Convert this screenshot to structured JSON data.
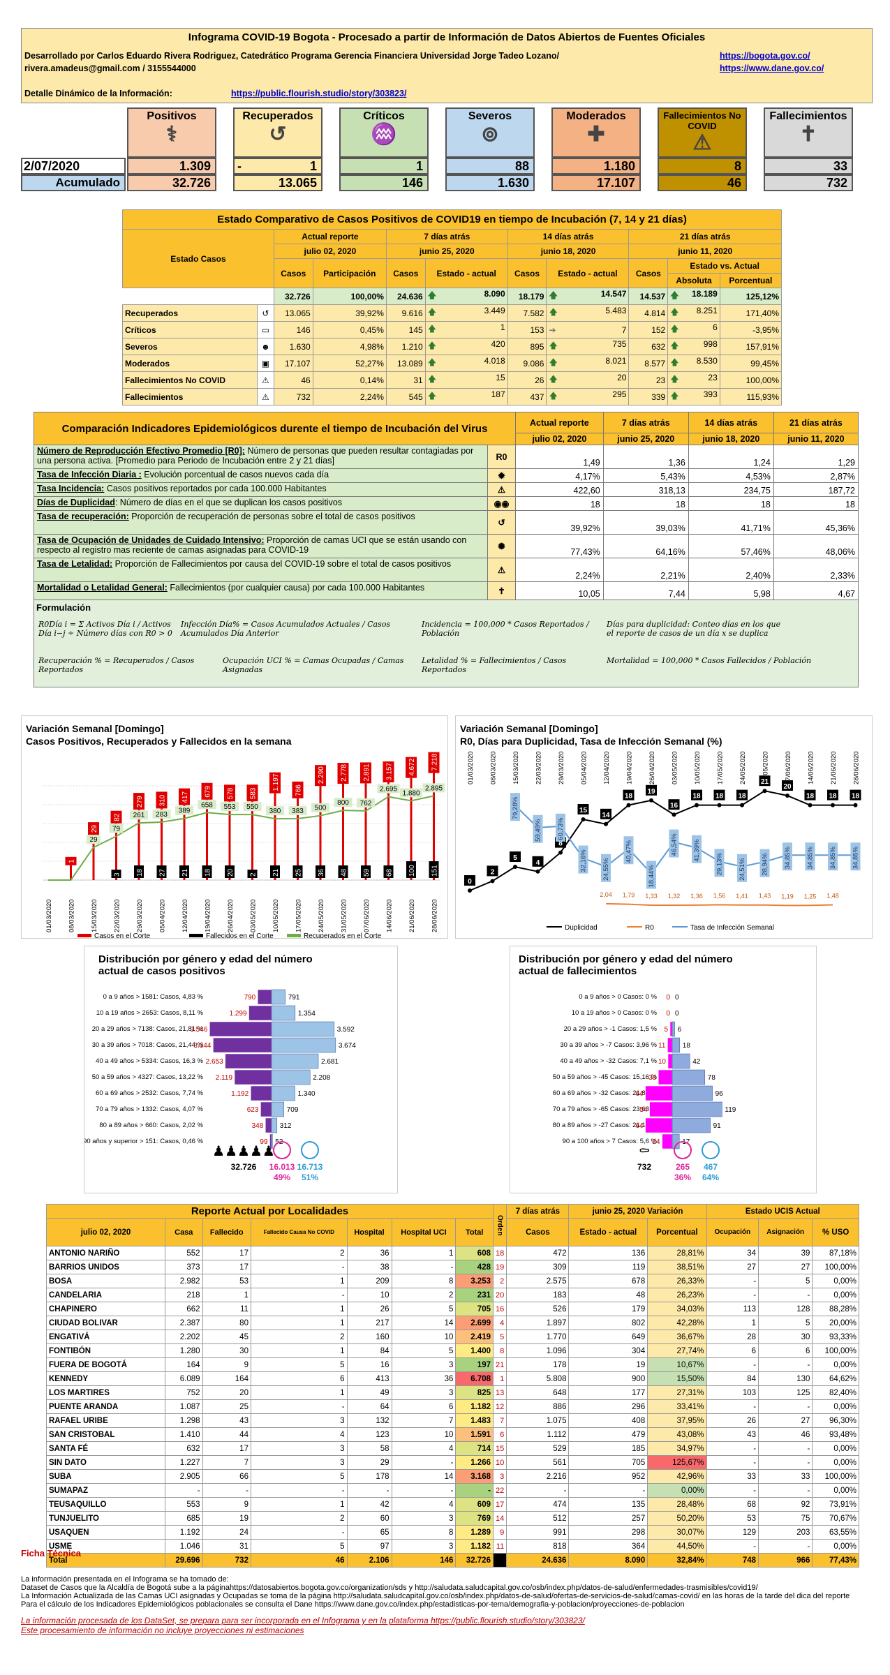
{
  "header": {
    "title": "Infograma COVID-19 Bogota - Procesado a partir de Información de Datos Abiertos de Fuentes Oficiales",
    "author": "Desarrollado por Carlos Eduardo Rivera Rodriguez, Catedrático Programa Gerencia Financiera Universidad Jorge Tadeo Lozano/",
    "contact": "rivera.amadeus@gmail.com / 3155544000",
    "link1": "https://bogota.gov.co/",
    "link2": "https://www.dane.gov.co/",
    "detail_label": "Detalle Dinámico de la Información:",
    "detail_link": "https://public.flourish.studio/story/303823/"
  },
  "kpi": {
    "date": "2/07/2020",
    "acum_label": "Acumulado",
    "cards": [
      {
        "name": "Positivos",
        "day": "1.309",
        "acum": "32.726",
        "color": "#f8cbad"
      },
      {
        "name": "Recuperados",
        "day": "1",
        "prefix": "-",
        "acum": "13.065",
        "color": "#fde9a9"
      },
      {
        "name": "Críticos",
        "day": "1",
        "acum": "146",
        "color": "#c6e0b4"
      },
      {
        "name": "Severos",
        "day": "88",
        "acum": "1.630",
        "color": "#bdd7ee"
      },
      {
        "name": "Moderados",
        "day": "1.180",
        "acum": "17.107",
        "color": "#f4b183"
      },
      {
        "name": "Fallecimientos No COVID",
        "day": "8",
        "acum": "46",
        "color": "#bf9000"
      },
      {
        "name": "Fallecimientos",
        "day": "33",
        "acum": "732",
        "color": "#d9d9d9"
      }
    ]
  },
  "t1": {
    "title": "Estado Comparativo de Casos Positivos de COVID19 en tiempo de Incubación (7, 14 y 21 días)",
    "estado": "Estado Casos",
    "h_actual": "Actual reporte",
    "d_actual": "julio 02, 2020",
    "h7": "7 días atrás",
    "d7": "junio 25, 2020",
    "h14": "14 días atrás",
    "d14": "junio 18, 2020",
    "h21": "21 días atrás",
    "d21": "junio 11, 2020",
    "casos": "Casos",
    "part": "Participación",
    "ea": "Estado - actual",
    "eva": "Estado vs. Actual",
    "abs": "Absoluta",
    "porc": "Porcentual",
    "tot": [
      "32.726",
      "100,00%",
      "24.636",
      "8.090",
      "18.179",
      "14.547",
      "14.537",
      "18.189",
      "125,12%"
    ],
    "rows": [
      [
        "Recuperados",
        "13.065",
        "39,92%",
        "9.616",
        "3.449",
        "7.582",
        "5.483",
        "4.814",
        "8.251",
        "171,40%"
      ],
      [
        "Críticos",
        "146",
        "0,45%",
        "145",
        "1",
        "153",
        "7",
        "152",
        "6",
        "-3,95%"
      ],
      [
        "Severos",
        "1.630",
        "4,98%",
        "1.210",
        "420",
        "895",
        "735",
        "632",
        "998",
        "157,91%"
      ],
      [
        "Moderados",
        "17.107",
        "52,27%",
        "13.089",
        "4.018",
        "9.086",
        "8.021",
        "8.577",
        "8.530",
        "99,45%"
      ],
      [
        "Fallecimientos No COVID",
        "46",
        "0,14%",
        "31",
        "15",
        "26",
        "20",
        "23",
        "23",
        "100,00%"
      ],
      [
        "Fallecimientos",
        "732",
        "2,24%",
        "545",
        "187",
        "437",
        "295",
        "339",
        "393",
        "115,93%"
      ]
    ]
  },
  "t2": {
    "title": "Comparación Indicadores Epidemiológicos durente el tiempo de Incubación del Virus",
    "cols": [
      "Actual reporte",
      "7 días atrás",
      "14 días atrás",
      "21 días atrás"
    ],
    "dates": [
      "julio 02, 2020",
      "junio 25, 2020",
      "junio 18, 2020",
      "junio 11, 2020"
    ],
    "rows": [
      {
        "k": "Número de Reproducción Efectivo Promedio [R0]:",
        "d": " Número de personas que pueden resultar contagiadas por una persona activa. [Promedio para Periodo de Incubación entre 2  y 21 días]",
        "icon": "R0",
        "v": [
          "1,49",
          "1,36",
          "1,24",
          "1,29"
        ]
      },
      {
        "k": "Tasa de Infección Diaria :",
        "d": " Evolución porcentual de casos nuevos cada día",
        "icon": "✹",
        "v": [
          "4,17%",
          "5,43%",
          "4,53%",
          "2,87%"
        ]
      },
      {
        "k": "Tasa Incidencia:",
        "d": " Casos positivos reportados  por cada 100.000 Habitantes",
        "icon": "⚠",
        "v": [
          "422,60",
          "318,13",
          "234,75",
          "187,72"
        ]
      },
      {
        "k": "Días de Duplicidad",
        "d": ": Número de días en el que se duplican los casos positivos",
        "icon": "◉◉",
        "v": [
          "18",
          "18",
          "18",
          "18"
        ]
      },
      {
        "k": "Tasa de recuperación:",
        "d": " Proporción de recuperación de personas sobre el total de casos positivos",
        "icon": "↺",
        "v": [
          "39,92%",
          "39,03%",
          "41,71%",
          "45,36%"
        ]
      },
      {
        "k": "Tasa de Ocupación de Unidades de Cuidado Intensivo:",
        "d": " Proporción de camas UCI que se están usando con respecto al registro mas reciente de camas asignadas para COVID-19",
        "icon": "✺",
        "v": [
          "77,43%",
          "64,16%",
          "57,46%",
          "48,06%"
        ]
      },
      {
        "k": "Tasa de Letalidad:",
        "d": " Proporción de Fallecimientos por causa del COVID-19 sobre el total de casos positivos",
        "icon": "⚠",
        "v": [
          "2,24%",
          "2,21%",
          "2,40%",
          "2,33%"
        ]
      },
      {
        "k": "Mortalidad o Letalidad General:",
        "d": " Fallecimientos (por cualquier causa) por cada 100.000 Habitantes",
        "icon": "✝",
        "v": [
          "10,05",
          "7,44",
          "5,98",
          "4,67"
        ]
      }
    ],
    "form_title": "Formulación",
    "f1": "R0Día i = Σ Activos Día i / Activos Día i−j ÷ Número días con R0 > 0",
    "f2": "Infección Día% = Casos Acumulados Actuales / Casos Acumulados Día Anterior",
    "f3": "Incidencia = 100,000 * Casos Reportados / Población",
    "f4": "Días para duplicidad: Conteo días en los que el reporte de casos de un día x se duplica",
    "f5": "Recuperación % = Recuperados / Casos Reportados",
    "f6": "Ocupación UCI % = Camas Ocupadas / Camas Asignadas",
    "f7": "Letalidad % = Fallecimientos / Casos Reportados",
    "f8": "Mortalidad = 100,000 * Casos Fallecidos / Población"
  },
  "chart_data": [
    {
      "type": "bar",
      "title": "Variación Semanal [Domingo]",
      "subtitle": "Casos Positivos, Recuperados y Fallecidos en la semana",
      "categories": [
        "01/03/2020",
        "08/03/2020",
        "15/03/2020",
        "22/03/2020",
        "29/03/2020",
        "05/04/2020",
        "12/04/2020",
        "19/04/2020",
        "26/04/2020",
        "03/05/2020",
        "10/05/2020",
        "17/05/2020",
        "24/05/2020",
        "31/05/2020",
        "07/06/2020",
        "14/06/2020",
        "21/06/2020",
        "28/06/2020"
      ],
      "series": [
        {
          "name": "Casos en el  Corte",
          "values": [
            0,
            1,
            29,
            82,
            279,
            310,
            417,
            679,
            578,
            583,
            1197,
            766,
            2290,
            2778,
            2891,
            3157,
            4672,
            7218
          ]
        },
        {
          "name": "Fallecidos en el Corte",
          "values": [
            0,
            0,
            0,
            3,
            18,
            27,
            21,
            18,
            20,
            2,
            21,
            25,
            36,
            48,
            59,
            68,
            100,
            151
          ]
        },
        {
          "name": "Recuperados en el Corte",
          "values": [
            0,
            0,
            29,
            79,
            261,
            283,
            389,
            658,
            553,
            550,
            380,
            383,
            500,
            800,
            762,
            2695,
            1880,
            2895
          ]
        }
      ]
    },
    {
      "type": "line",
      "title": "Variación Semanal [Domingo]",
      "subtitle": "R0, Días para Duplicidad, Tasa de Infección Semanal (%)",
      "categories": [
        "01/03/2020",
        "08/03/2020",
        "15/03/2020",
        "22/03/2020",
        "29/03/2020",
        "05/04/2020",
        "12/04/2020",
        "19/04/2020",
        "26/04/2020",
        "03/05/2020",
        "10/05/2020",
        "17/05/2020",
        "24/05/2020",
        "31/05/2020",
        "07/06/2020",
        "14/06/2020",
        "21/06/2020",
        "28/06/2020"
      ],
      "series": [
        {
          "name": "Duplicidad",
          "values": [
            0,
            2,
            5,
            4,
            8,
            15,
            14,
            18,
            19,
            16,
            18,
            18,
            18,
            21,
            20,
            18,
            18,
            18
          ]
        },
        {
          "name": "R0",
          "values": [
            null,
            null,
            null,
            null,
            null,
            null,
            2.04,
            1.79,
            1.33,
            1.32,
            1.36,
            1.56,
            1.41,
            1.43,
            1.19,
            1.25,
            1.48,
            null
          ]
        },
        {
          "name": "Tasa de Infección Semanal",
          "values": [
            null,
            null,
            79.28,
            59.49,
            60.73,
            32.16,
            24.55,
            40.47,
            18.44,
            46.54,
            41.39,
            29.13,
            24.51,
            28.94,
            34.85,
            34.85,
            34.85,
            34.85
          ]
        }
      ]
    },
    {
      "type": "bar",
      "title": "Distribución por género y edad del número actual de casos positivos",
      "categories": [
        "0 a 9 años > 1581: Casos, 4,83 %",
        "10 a 19 años > 2653: Casos, 8,11 %",
        "20 a 29 años > 7138: Casos, 21,81 %",
        "30 a 39 años > 7018: Casos, 21,44 %",
        "40 a 49 años > 5334: Casos, 16,3 %",
        "50 a 59 años > 4327: Casos, 13,22 %",
        "60 a 69 años > 2532: Casos, 7,74 %",
        "70 a 79 años > 1332: Casos, 4,07 %",
        "80 a 89 años > 660: Casos, 2,02 %",
        "90 años y superior > 151: Casos, 0,46 %"
      ],
      "series": [
        {
          "name": "Mujeres",
          "values": [
            790,
            1299,
            3546,
            3344,
            2653,
            2119,
            1192,
            623,
            348,
            99
          ]
        },
        {
          "name": "Hombres",
          "values": [
            791,
            1354,
            3592,
            3674,
            2681,
            2208,
            1340,
            709,
            312,
            52
          ]
        }
      ],
      "total": "32.726",
      "women": "16.013",
      "women_pct": "49%",
      "men": "16.713",
      "men_pct": "51%"
    },
    {
      "type": "bar",
      "title": "Distribución por género y edad del número actual de fallecimientos",
      "categories": [
        "0 a 9 años > 0 Casos: 0 %",
        "10 a 19 años > 0 Casos: 0 %",
        "20 a 29 años > -1 Casos: 1,5 %",
        "30 a 39 años > -7 Casos: 3,96 %",
        "40 a 49 años > -32 Casos: 7,1 %",
        "50 a 59 años > -45 Casos: 15,16 %",
        "60 a 69 años > -32 Casos: 21,86 %",
        "70 a 79 años > -65 Casos: 23,63 %",
        "80 a 89 años > -27 Casos: 21,17 %",
        "90 a 100 años > 7 Casos: 5,6 %"
      ],
      "series": [
        {
          "name": "Mujeres",
          "values": [
            0,
            0,
            5,
            11,
            10,
            33,
            64,
            54,
            64,
            24
          ]
        },
        {
          "name": "Hombres",
          "values": [
            0,
            0,
            6,
            18,
            42,
            78,
            96,
            119,
            91,
            17
          ]
        }
      ],
      "total": "732",
      "women": "265",
      "women_pct": "36%",
      "men": "467",
      "men_pct": "64%"
    }
  ],
  "t3": {
    "title": "Reporte Actual por Localidades",
    "date": "julio 02, 2020",
    "orden": "Orden",
    "h7": "7 días atrás",
    "hvar": "junio 25, 2020 Variación",
    "hucis": "Estado UCIS Actual",
    "cols": [
      "Casa",
      "Fallecido",
      "Fallecido Causa No COVID",
      "Hospital",
      "Hospital UCI",
      "Total",
      "",
      "Casos",
      "Estado - actual",
      "Porcentual",
      "Ocupación",
      "Asignación",
      "% USO"
    ],
    "rows": [
      [
        "ANTONIO NARIÑO",
        "552",
        "17",
        "2",
        "36",
        "1",
        "608",
        "18",
        "472",
        "136",
        "28,81%",
        "34",
        "39",
        "87,18%"
      ],
      [
        "BARRIOS UNIDOS",
        "373",
        "17",
        "-",
        "38",
        "-",
        "428",
        "19",
        "309",
        "119",
        "38,51%",
        "27",
        "27",
        "100,00%"
      ],
      [
        "BOSA",
        "2.982",
        "53",
        "1",
        "209",
        "8",
        "3.253",
        "2",
        "2.575",
        "678",
        "26,33%",
        "-",
        "5",
        "0,00%"
      ],
      [
        "CANDELARIA",
        "218",
        "1",
        "-",
        "10",
        "2",
        "231",
        "20",
        "183",
        "48",
        "26,23%",
        "-",
        "-",
        "0,00%"
      ],
      [
        "CHAPINERO",
        "662",
        "11",
        "1",
        "26",
        "5",
        "705",
        "16",
        "526",
        "179",
        "34,03%",
        "113",
        "128",
        "88,28%"
      ],
      [
        "CIUDAD BOLIVAR",
        "2.387",
        "80",
        "1",
        "217",
        "14",
        "2.699",
        "4",
        "1.897",
        "802",
        "42,28%",
        "1",
        "5",
        "20,00%"
      ],
      [
        "ENGATIVÁ",
        "2.202",
        "45",
        "2",
        "160",
        "10",
        "2.419",
        "5",
        "1.770",
        "649",
        "36,67%",
        "28",
        "30",
        "93,33%"
      ],
      [
        "FONTIBÓN",
        "1.280",
        "30",
        "1",
        "84",
        "5",
        "1.400",
        "8",
        "1.096",
        "304",
        "27,74%",
        "6",
        "6",
        "100,00%"
      ],
      [
        "FUERA DE BOGOTÁ",
        "164",
        "9",
        "5",
        "16",
        "3",
        "197",
        "21",
        "178",
        "19",
        "10,67%",
        "-",
        "-",
        "0,00%"
      ],
      [
        "KENNEDY",
        "6.089",
        "164",
        "6",
        "413",
        "36",
        "6.708",
        "1",
        "5.808",
        "900",
        "15,50%",
        "84",
        "130",
        "64,62%"
      ],
      [
        "LOS MARTIRES",
        "752",
        "20",
        "1",
        "49",
        "3",
        "825",
        "13",
        "648",
        "177",
        "27,31%",
        "103",
        "125",
        "82,40%"
      ],
      [
        "PUENTE ARANDA",
        "1.087",
        "25",
        "-",
        "64",
        "6",
        "1.182",
        "12",
        "886",
        "296",
        "33,41%",
        "-",
        "-",
        "0,00%"
      ],
      [
        "RAFAEL URIBE",
        "1.298",
        "43",
        "3",
        "132",
        "7",
        "1.483",
        "7",
        "1.075",
        "408",
        "37,95%",
        "26",
        "27",
        "96,30%"
      ],
      [
        "SAN CRISTOBAL",
        "1.410",
        "44",
        "4",
        "123",
        "10",
        "1.591",
        "6",
        "1.112",
        "479",
        "43,08%",
        "43",
        "46",
        "93,48%"
      ],
      [
        "SANTA FÉ",
        "632",
        "17",
        "3",
        "58",
        "4",
        "714",
        "15",
        "529",
        "185",
        "34,97%",
        "-",
        "-",
        "0,00%"
      ],
      [
        "SIN DATO",
        "1.227",
        "7",
        "3",
        "29",
        "-",
        "1.266",
        "10",
        "561",
        "705",
        "125,67%",
        "-",
        "-",
        "0,00%"
      ],
      [
        "SUBA",
        "2.905",
        "66",
        "5",
        "178",
        "14",
        "3.168",
        "3",
        "2.216",
        "952",
        "42,96%",
        "33",
        "33",
        "100,00%"
      ],
      [
        "SUMAPAZ",
        "-",
        "-",
        "-",
        "-",
        "-",
        "-",
        "22",
        "-",
        "-",
        "0,00%",
        "-",
        "-",
        "0,00%"
      ],
      [
        "TEUSAQUILLO",
        "553",
        "9",
        "1",
        "42",
        "4",
        "609",
        "17",
        "474",
        "135",
        "28,48%",
        "68",
        "92",
        "73,91%"
      ],
      [
        "TUNJUELITO",
        "685",
        "19",
        "2",
        "60",
        "3",
        "769",
        "14",
        "512",
        "257",
        "50,20%",
        "53",
        "75",
        "70,67%"
      ],
      [
        "USAQUEN",
        "1.192",
        "24",
        "-",
        "65",
        "8",
        "1.289",
        "9",
        "991",
        "298",
        "30,07%",
        "129",
        "203",
        "63,55%"
      ],
      [
        "USME",
        "1.046",
        "31",
        "5",
        "97",
        "3",
        "1.182",
        "11",
        "818",
        "364",
        "44,50%",
        "-",
        "-",
        "0,00%"
      ]
    ],
    "total": [
      "Total",
      "29.696",
      "732",
      "46",
      "2.106",
      "146",
      "32.726",
      "",
      "24.636",
      "8.090",
      "32,84%",
      "748",
      "966",
      "77,43%"
    ]
  },
  "foot": {
    "ficha": "Ficha Técnica",
    "l1": "La información presentada en el Infograma se ha tomado de:",
    "l2": "Dataset de Casos que  la Alcaldía de Bogotá sube a la páginahttps://datosabiertos.bogota.gov.co/organization/sds  y http://saludata.saludcapital.gov.co/osb/index.php/datos-de-salud/enfermedades-trasmisibles/covid19/",
    "l3": "La Información Actualizada de las Camas UCI asignadas y Ocupadas se toma de la página  http://saludata.saludcapital.gov.co/osb/index.php/datos-de-salud/ofertas-de-servicios-de-salud/camas-covid/ en las horas de la tarde del dica del reporte",
    "l4": "Para el cálculo de los Indicadores Epidemiológicos poblacionales se consulta el Dane https://www.dane.gov.co/index.php/estadisticas-por-tema/demografia-y-poblacion/proyecciones-de-poblacion",
    "l5": "La información procesada de los DataSet, se prepara para ser incorporada en el Infograma y en la plataforma https://public.flourish.studio/story/303823/",
    "l6": "Este procesamiento de información no incluye proyecciones ni estimaciones"
  }
}
